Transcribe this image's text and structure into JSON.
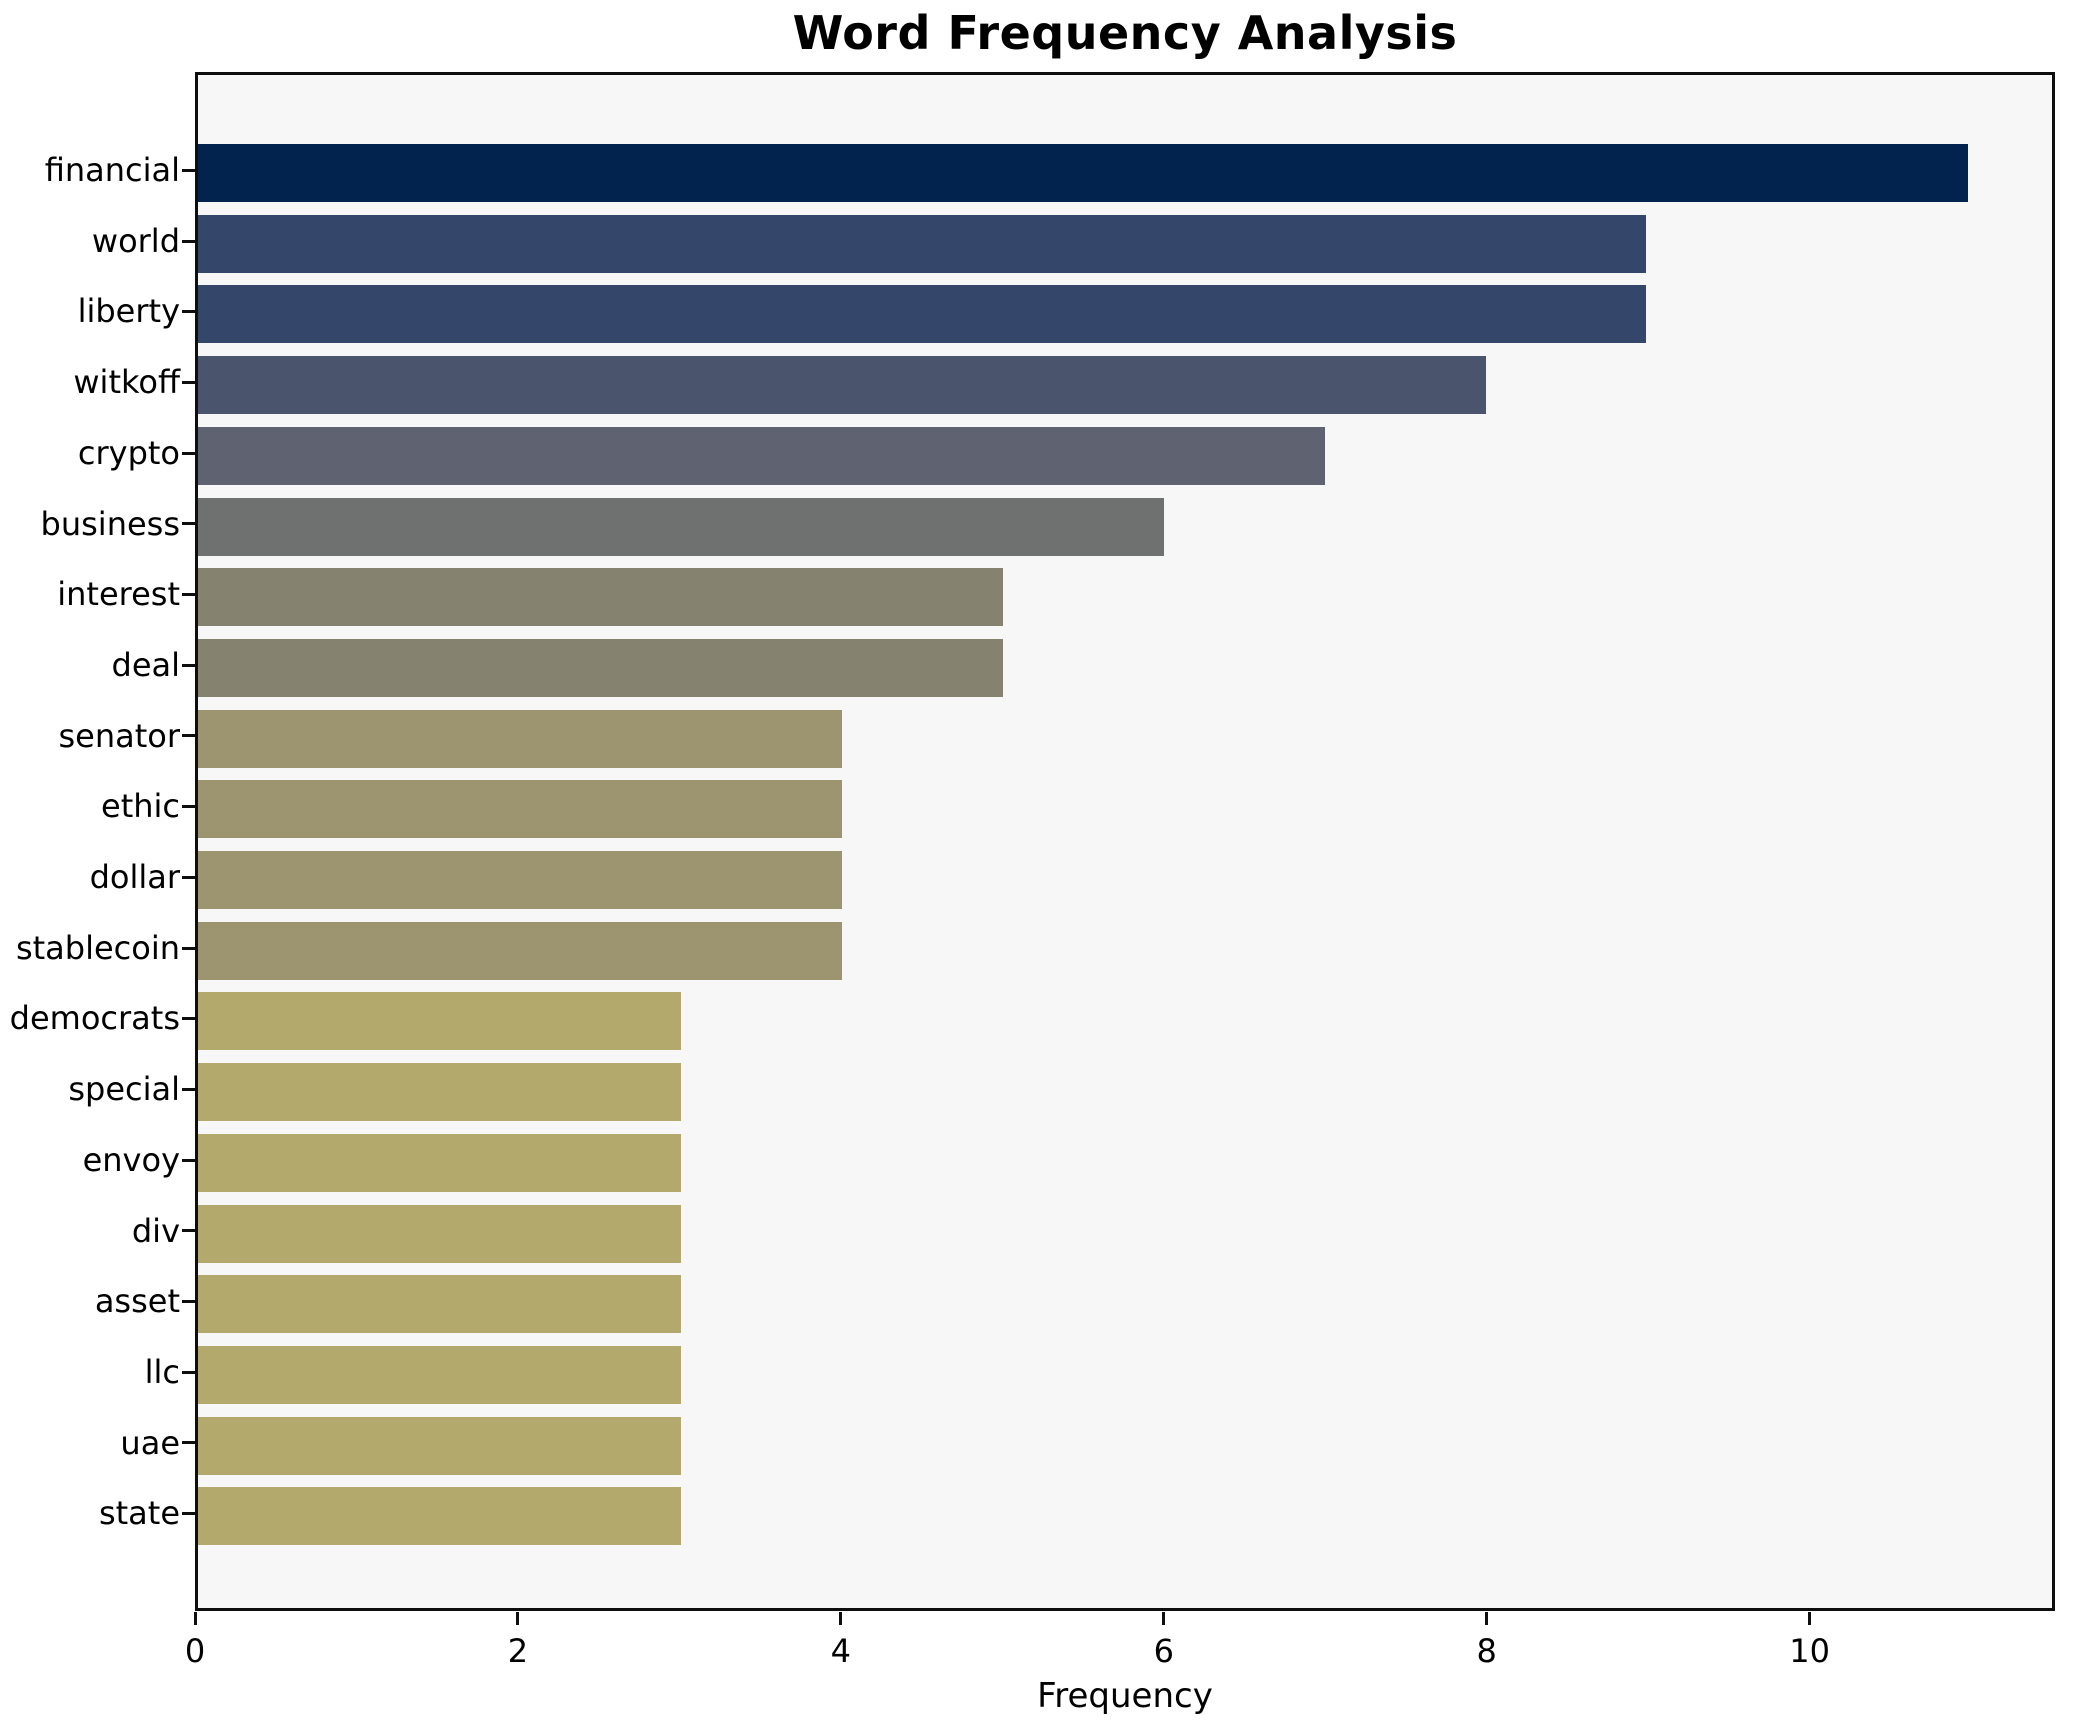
{
  "title": "Word Frequency Analysis",
  "axis": {
    "xlabel": "Frequency"
  },
  "colors": {
    "figure_background": "#ffffff",
    "plot_background": "#f7f7f8",
    "spine": "#0e0e0e",
    "text": "#000000"
  },
  "chart_data": {
    "type": "bar",
    "orientation": "horizontal",
    "title": "Word Frequency Analysis",
    "xlabel": "Frequency",
    "ylabel": "",
    "categories": [
      "financial",
      "world",
      "liberty",
      "witkoff",
      "crypto",
      "business",
      "interest",
      "deal",
      "senator",
      "ethic",
      "dollar",
      "stablecoin",
      "democrats",
      "special",
      "envoy",
      "div",
      "asset",
      "llc",
      "uae",
      "state"
    ],
    "values": [
      11,
      9,
      9,
      8,
      7,
      6,
      5,
      5,
      4,
      4,
      4,
      4,
      3,
      3,
      3,
      3,
      3,
      3,
      3,
      3
    ],
    "bar_colors": [
      "#02234e",
      "#35466b",
      "#35466b",
      "#4b546d",
      "#5e6271",
      "#6f7170",
      "#858370",
      "#858370",
      "#9d9470",
      "#9d9470",
      "#9d9470",
      "#9d9470",
      "#b3a96c",
      "#b3a96c",
      "#b3a96c",
      "#b3a96c",
      "#b3a96c",
      "#b3a96c",
      "#b3a96c",
      "#b3a96c"
    ],
    "xlim": [
      0,
      11.52
    ],
    "x_ticks": [
      0,
      2,
      4,
      6,
      8,
      10
    ],
    "grid": false,
    "legend": null
  }
}
